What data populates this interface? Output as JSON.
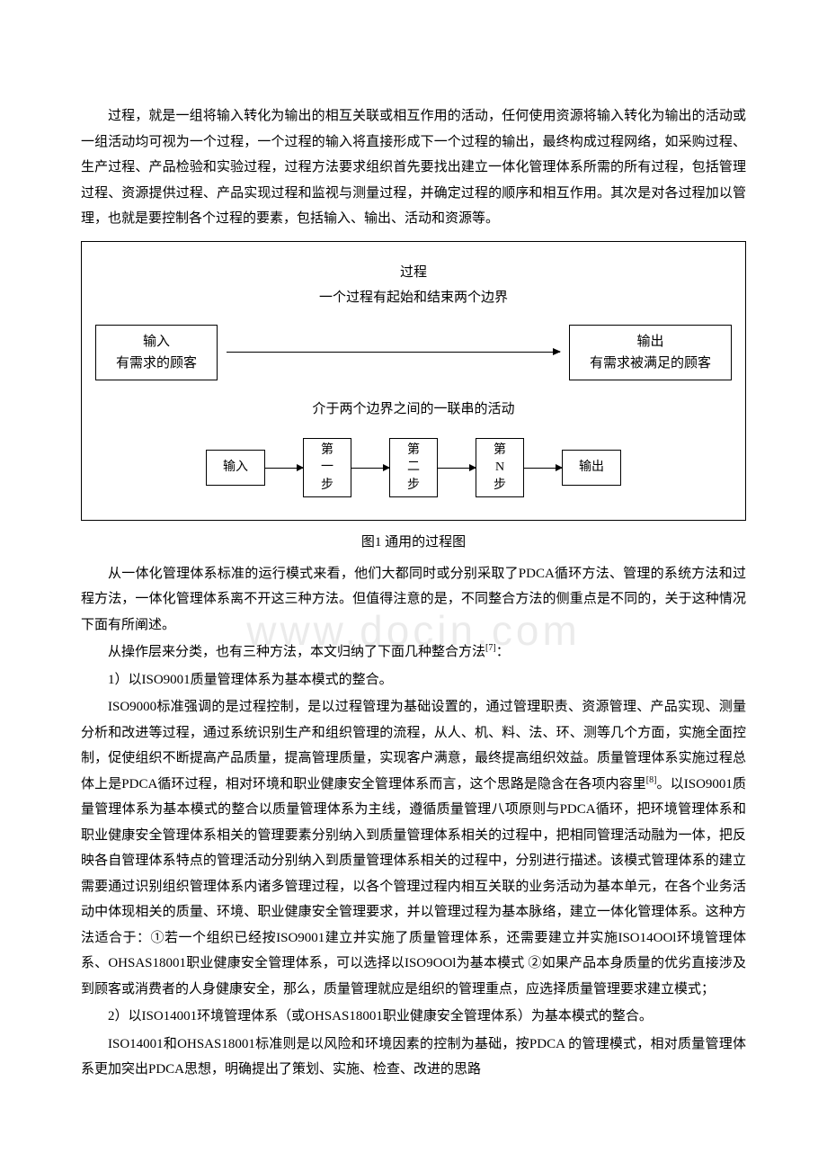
{
  "watermark": "www.docin.com",
  "paragraphs": {
    "p1": "过程，就是一组将输入转化为输出的相互关联或相互作用的活动，任何使用资源将输入转化为输出的活动或一组活动均可视为一个过程，一个过程的输入将直接形成下一个过程的输出，最终构成过程网络，如采购过程、生产过程、产品检验和实验过程，过程方法要求组织首先要找出建立一体化管理体系所需的所有过程，包括管理过程、资源提供过程、产品实现过程和监视与测量过程，并确定过程的顺序和相互作用。其次是对各过程加以管理，也就是要控制各个过程的要素，包括输入、输出、活动和资源等。",
    "p2": "从一体化管理体系标准的运行模式来看，他们大都同时或分别采取了PDCA循环方法、管理的系统方法和过程方法，一体化管理体系离不开这三种方法。但值得注意的是，不同整合方法的侧重点是不同的，关于这种情况下面有所阐述。",
    "p3_prefix": "从操作层来分类，也有三种方法，本文归纳了下面几种整合方法",
    "p3_ref": "[7]",
    "p3_suffix": "：",
    "p4": "1）以ISO9001质量管理体系为基本模式的整合。",
    "p5_prefix": "ISO9000标准强调的是过程控制，是以过程管理为基础设置的，通过管理职责、资源管理、产品实现、测量分析和改进等过程，通过系统识别生产和组织管理的流程，从人、机、料、法、环、测等几个方面，实施全面控制，促使组织不断提高产品质量，提高管理质量，实现客户满意，最终提高组织效益。质量管理体系实施过程总体上是PDCA循环过程，相对环境和职业健康安全管理体系而言，这个思路是隐含在各项内容里",
    "p5_ref": "[8]",
    "p5_suffix": "。以ISO9001质量管理体系为基本模式的整合以质量管理体系为主线，遵循质量管理八项原则与PDCA循环，把环境管理体系和职业健康安全管理体系相关的管理要素分别纳入到质量管理体系相关的过程中，把相同管理活动融为一体，把反映各自管理体系特点的管理活动分别纳入到质量管理体系相关的过程中，分别进行描述。该模式管理体系的建立需要通过识别组织管理体系内诸多管理过程，以各个管理过程内相互关联的业务活动为基本单元，在各个业务活动中体现相关的质量、环境、职业健康安全管理要求，并以管理过程为基本脉络，建立一体化管理体系。这种方法适合于：①若一个组织已经按ISO9001建立并实施了质量管理体系，还需要建立并实施ISO14OOl环境管理体系、OHSAS18001职业健康安全管理体系，可以选择以ISO9OOl为基本模式 ②如果产品本身质量的优劣直接涉及到顾客或消费者的人身健康安全，那么，质量管理就应是组织的管理重点，应选择质量管理要求建立模式；",
    "p6": "2）以ISO14001环境管理体系（或OHSAS18001职业健康安全管理体系）为基本模式的整合。",
    "p7": "ISO14001和OHSAS18001标准则是以风险和环境因素的控制为基础，按PDCA 的管理模式，相对质量管理体系更加突出PDCA思想，明确提出了策划、实施、检查、改进的思路"
  },
  "diagram": {
    "title_line1": "过程",
    "title_line2": "一个过程有起始和结束两个边界",
    "input_box_line1": "输入",
    "input_box_line2": "有需求的顾客",
    "output_box_line1": "输出",
    "output_box_line2": "有需求被满足的顾客",
    "middle_text": "介于两个边界之间的一联串的活动",
    "step_input": "输入",
    "step1": "第一步",
    "step2": "第二步",
    "stepN": "第N步",
    "step_output": "输出",
    "caption": "图1 通用的过程图",
    "border_color": "#000000",
    "background_color": "#ffffff",
    "font_size": 15
  }
}
